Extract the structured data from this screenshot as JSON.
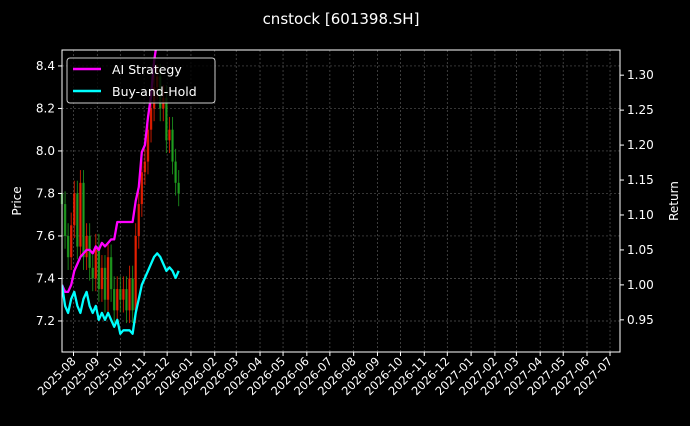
{
  "chart_data": {
    "type": "line",
    "title": "cnstock [601398.SH]",
    "ylabel_left": "Price",
    "ylabel_right": "Return",
    "xlim": [
      "2025-07-17",
      "2027-07-14"
    ],
    "ylim_left": [
      7.054,
      8.475
    ],
    "ylim_right": [
      0.904,
      1.336
    ],
    "grid": true,
    "legend_placement": "top-left",
    "x_ticks": [
      "2025-08",
      "2025-09",
      "2025-10",
      "2025-11",
      "2025-12",
      "2026-01",
      "2026-02",
      "2026-03",
      "2026-04",
      "2026-05",
      "2026-06",
      "2026-07",
      "2026-08",
      "2026-09",
      "2026-10",
      "2026-11",
      "2026-12",
      "2027-01",
      "2027-02",
      "2027-03",
      "2027-04",
      "2027-05",
      "2027-06",
      "2027-07"
    ],
    "y_ticks_left": [
      7.2,
      7.4,
      7.6,
      7.8,
      8.0,
      8.2,
      8.4
    ],
    "y_ticks_right": [
      0.95,
      1.0,
      1.05,
      1.1,
      1.15,
      1.2,
      1.25,
      1.3
    ],
    "candles": {
      "dates": [
        "2025-07-17",
        "2025-07-21",
        "2025-07-25",
        "2025-07-29",
        "2025-08-02",
        "2025-08-06",
        "2025-08-10",
        "2025-08-14",
        "2025-08-18",
        "2025-08-22",
        "2025-08-26",
        "2025-08-30",
        "2025-09-03",
        "2025-09-07",
        "2025-09-11",
        "2025-09-15",
        "2025-09-19",
        "2025-09-23",
        "2025-09-27",
        "2025-10-01",
        "2025-10-05",
        "2025-10-09",
        "2025-10-13",
        "2025-10-17",
        "2025-10-21",
        "2025-10-25",
        "2025-10-29",
        "2025-11-02",
        "2025-11-06",
        "2025-11-10",
        "2025-11-14",
        "2025-11-18",
        "2025-11-22",
        "2025-11-26",
        "2025-11-30",
        "2025-12-04",
        "2025-12-08",
        "2025-12-12",
        "2025-12-16"
      ],
      "close": [
        7.75,
        7.6,
        7.5,
        7.65,
        7.8,
        7.55,
        7.85,
        7.5,
        7.6,
        7.45,
        7.4,
        7.55,
        7.35,
        7.45,
        7.3,
        7.5,
        7.35,
        7.25,
        7.35,
        7.3,
        7.35,
        7.25,
        7.4,
        7.25,
        7.6,
        7.75,
        7.9,
        7.95,
        8.1,
        8.2,
        8.3,
        8.35,
        8.2,
        8.25,
        8.05,
        8.1,
        7.95,
        7.85,
        7.8
      ],
      "up_color": "#ff2200",
      "down_color": "#22aa22"
    },
    "series": [
      {
        "name": "AI Strategy",
        "color": "#ff00ff",
        "values": [
          1.0,
          0.99,
          0.99,
          1.0,
          1.02,
          1.03,
          1.04,
          1.045,
          1.05,
          1.05,
          1.045,
          1.055,
          1.05,
          1.06,
          1.055,
          1.06,
          1.065,
          1.065,
          1.09,
          1.09,
          1.09,
          1.09,
          1.09,
          1.09,
          1.12,
          1.14,
          1.19,
          1.2,
          1.24,
          1.27,
          1.32,
          1.35,
          1.36,
          1.36,
          1.36,
          1.36,
          1.36,
          1.36,
          1.36
        ]
      },
      {
        "name": "Buy-and-Hold",
        "color": "#00ffff",
        "values": [
          1.0,
          0.97,
          0.96,
          0.98,
          0.99,
          0.97,
          0.96,
          0.98,
          0.99,
          0.97,
          0.96,
          0.97,
          0.95,
          0.96,
          0.95,
          0.96,
          0.95,
          0.94,
          0.95,
          0.93,
          0.935,
          0.935,
          0.935,
          0.93,
          0.96,
          0.98,
          1.0,
          1.01,
          1.02,
          1.03,
          1.04,
          1.045,
          1.04,
          1.03,
          1.02,
          1.025,
          1.02,
          1.01,
          1.02
        ]
      }
    ]
  }
}
